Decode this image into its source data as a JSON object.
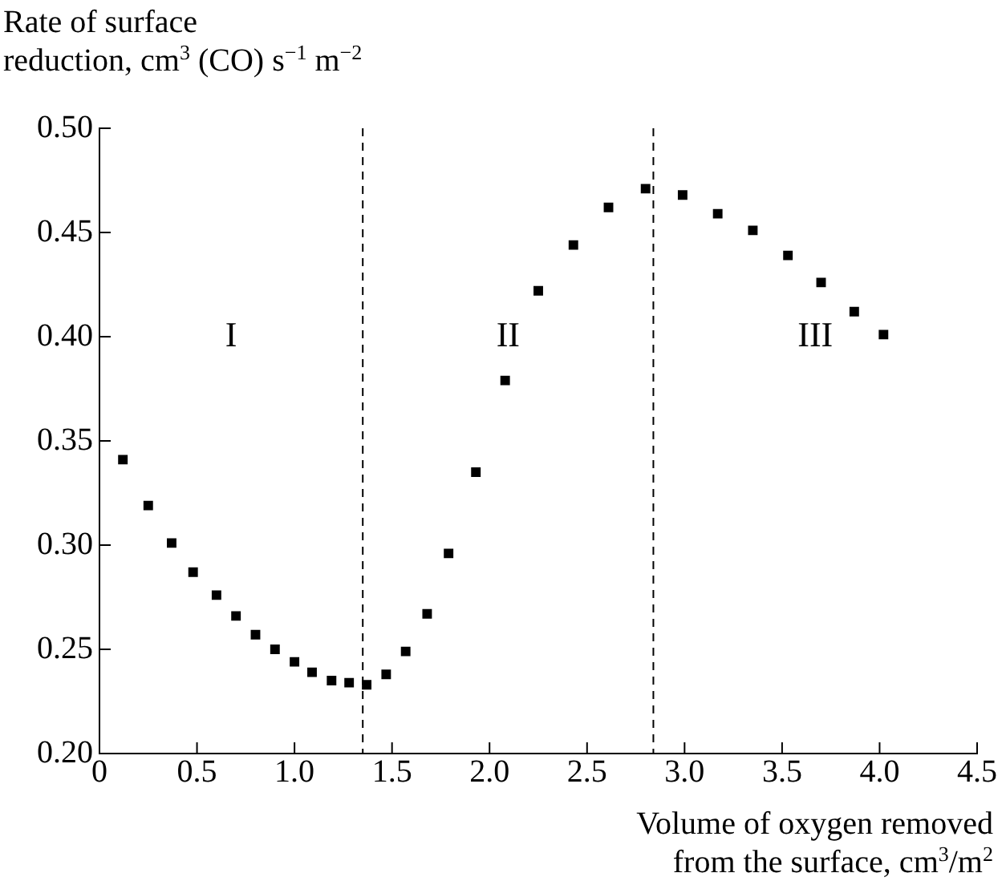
{
  "chart_data": {
    "type": "scatter",
    "ylabel": "Rate of surface\nreduction, cm$^{3}$ (CO) s$^{−1}$ m$^{−2}$",
    "xlabel": "Volume of oxygen removed\nfrom the surface, cm$^{3}$/m$^{2}$",
    "x": [
      0.12,
      0.25,
      0.37,
      0.48,
      0.6,
      0.7,
      0.8,
      0.9,
      1.0,
      1.09,
      1.19,
      1.28,
      1.37,
      1.47,
      1.57,
      1.68,
      1.79,
      1.93,
      2.08,
      2.25,
      2.43,
      2.61,
      2.8,
      2.99,
      3.17,
      3.35,
      3.53,
      3.7,
      3.87,
      4.02
    ],
    "series": [
      {
        "color": "#000000",
        "values": [
          0.341,
          0.319,
          0.301,
          0.287,
          0.276,
          0.266,
          0.257,
          0.25,
          0.244,
          0.239,
          0.235,
          0.234,
          0.233,
          0.238,
          0.249,
          0.267,
          0.296,
          0.335,
          0.379,
          0.422,
          0.444,
          0.462,
          0.471,
          0.468,
          0.459,
          0.451,
          0.439,
          0.426,
          0.412,
          0.401
        ]
      }
    ],
    "marker": "square",
    "xlim": [
      0,
      4.5
    ],
    "xticks": [
      0,
      0.5,
      {
        "value": 1,
        "label": "1.0"
      },
      1.5,
      {
        "value": 2,
        "label": "2.0"
      },
      2.5,
      {
        "value": 3,
        "label": "3.0"
      },
      3.5,
      {
        "value": 4,
        "label": "4.0"
      },
      4.5
    ],
    "ylim": [
      0.2,
      0.5
    ],
    "yticks": [
      {
        "value": 0.2,
        "label": "0.20"
      },
      0.25,
      {
        "value": 0.3,
        "label": "0.30"
      },
      0.35,
      {
        "value": 0.4,
        "label": "0.40"
      },
      0.45,
      {
        "value": 0.5,
        "label": "0.50"
      }
    ],
    "ref_lines": [
      {
        "axis": "x",
        "value": 1.35,
        "line_style": "dashed",
        "color": "#000000"
      },
      {
        "axis": "x",
        "value": 2.84,
        "line_style": "dashed",
        "color": "#000000"
      }
    ],
    "annotations": [
      "I",
      "II",
      "III"
    ],
    "grid": false,
    "legend": false
  }
}
